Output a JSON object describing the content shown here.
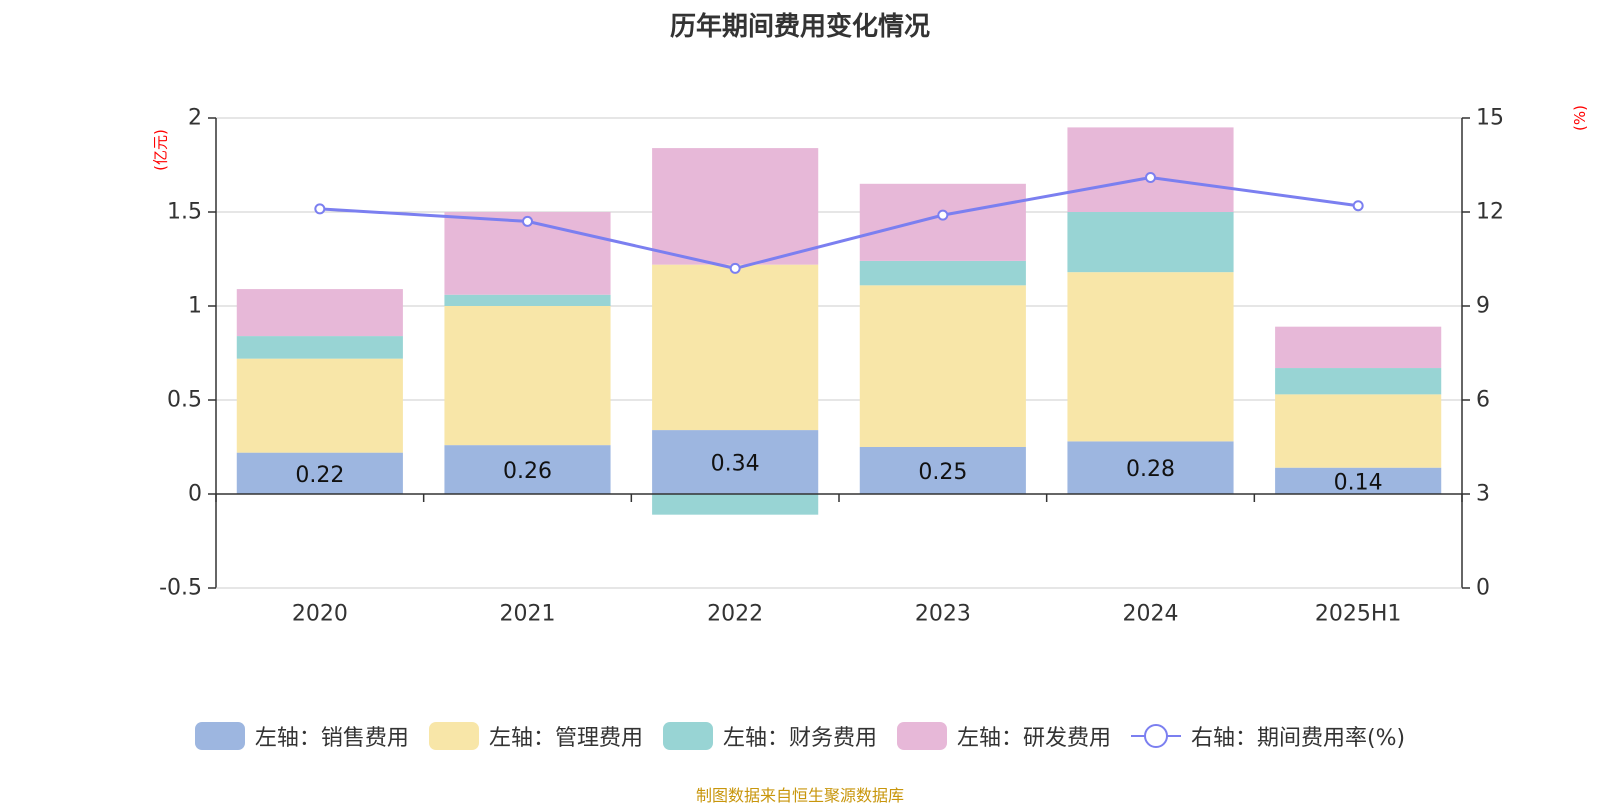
{
  "chart_data": {
    "type": "bar",
    "title": "历年期间费用变化情况",
    "categories": [
      "2020",
      "2021",
      "2022",
      "2023",
      "2024",
      "2025H1"
    ],
    "left_axis": {
      "unit": "(亿元)",
      "ylim": [
        -0.5,
        2
      ],
      "ticks": [
        "-0.5",
        "0",
        "0.5",
        "1",
        "1.5",
        "2"
      ],
      "tick_values": [
        -0.5,
        0,
        0.5,
        1,
        1.5,
        2
      ]
    },
    "right_axis": {
      "unit": "(%)",
      "ylim": [
        0,
        15
      ],
      "ticks": [
        "0",
        "3",
        "6",
        "9",
        "12",
        "15"
      ],
      "tick_values": [
        0,
        3,
        6,
        9,
        12,
        15
      ]
    },
    "stacked": true,
    "grid": true,
    "legend_position": "bottom",
    "series": [
      {
        "name": "左轴：销售费用",
        "axis": "left",
        "color": "#9db6e0",
        "values": [
          0.22,
          0.26,
          0.34,
          0.25,
          0.28,
          0.14
        ],
        "labels": [
          "0.22",
          "0.26",
          "0.34",
          "0.25",
          "0.28",
          "0.14"
        ]
      },
      {
        "name": "左轴：管理费用",
        "axis": "left",
        "color": "#f8e6a8",
        "values": [
          0.5,
          0.74,
          0.88,
          0.86,
          0.9,
          0.39
        ]
      },
      {
        "name": "左轴：财务费用",
        "axis": "left",
        "color": "#98d4d4",
        "values": [
          0.12,
          0.06,
          -0.11,
          0.13,
          0.32,
          0.14
        ]
      },
      {
        "name": "左轴：研发费用",
        "axis": "left",
        "color": "#e7b8d8",
        "values": [
          0.25,
          0.44,
          0.62,
          0.41,
          0.45,
          0.22
        ]
      },
      {
        "name": "右轴：期间费用率(%)",
        "axis": "right",
        "type": "line",
        "color": "#7b7ff0",
        "values": [
          12.1,
          11.7,
          10.2,
          11.9,
          13.1,
          12.2
        ]
      }
    ]
  },
  "source": "制图数据来自恒生聚源数据库"
}
